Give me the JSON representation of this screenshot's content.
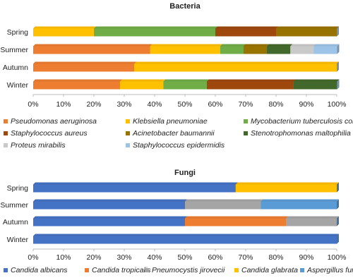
{
  "chart_data": [
    {
      "type": "bar",
      "orientation": "horizontal",
      "stacked": true,
      "title": "Bacteria",
      "categories": [
        "Spring",
        "Summer",
        "Autumn",
        "Winter"
      ],
      "xlim": [
        0,
        100
      ],
      "xticks": [
        {
          "value": 0,
          "label": "0%"
        },
        {
          "value": 10,
          "label": "10%"
        },
        {
          "value": 20,
          "label": "20%"
        },
        {
          "value": 30,
          "label": "30%"
        },
        {
          "value": 40,
          "label": "40%"
        },
        {
          "value": 50,
          "label": "50%"
        },
        {
          "value": 60,
          "label": "60%"
        },
        {
          "value": 70,
          "label": "70%"
        },
        {
          "value": 80,
          "label": "80%"
        },
        {
          "value": 90,
          "label": "90%"
        },
        {
          "value": 100,
          "label": "100%"
        }
      ],
      "series": [
        {
          "name": "Pseudomonas aeruginosa",
          "color": "#ed7d31",
          "values": [
            0,
            38.5,
            33.3,
            28.6
          ]
        },
        {
          "name": "Klebsiella pneumoniae",
          "color": "#ffc000",
          "values": [
            20,
            23.1,
            66.7,
            14.3
          ]
        },
        {
          "name": "Mycobacterium tuberculosis complex",
          "color": "#70ad47",
          "values": [
            40,
            7.7,
            0,
            14.3
          ]
        },
        {
          "name": "Staphylococcus aureus",
          "color": "#9e480e",
          "values": [
            20,
            0,
            0,
            28.6
          ]
        },
        {
          "name": "Acinetobacter baumannii",
          "color": "#997300",
          "values": [
            20,
            7.7,
            0,
            0
          ]
        },
        {
          "name": "Stenotrophomonas maltophilia",
          "color": "#43682b",
          "values": [
            0,
            7.7,
            0,
            14.3
          ]
        },
        {
          "name": "Proteus mirabilis",
          "color": "#c9c9c9",
          "values": [
            0,
            7.7,
            0,
            0
          ]
        },
        {
          "name": "Staphylococcus epidermidis",
          "color": "#9dc3e6",
          "values": [
            0,
            7.7,
            0,
            0
          ]
        }
      ]
    },
    {
      "type": "bar",
      "orientation": "horizontal",
      "stacked": true,
      "title": "Fungi",
      "categories": [
        "Spring",
        "Summer",
        "Autumn",
        "Winter"
      ],
      "xlim": [
        0,
        100
      ],
      "xticks": [
        {
          "value": 0,
          "label": "0%"
        },
        {
          "value": 10,
          "label": "10%"
        },
        {
          "value": 20,
          "label": "20%"
        },
        {
          "value": 30,
          "label": "30%"
        },
        {
          "value": 40,
          "label": "40%"
        },
        {
          "value": 50,
          "label": "50%"
        },
        {
          "value": 60,
          "label": "60%"
        },
        {
          "value": 70,
          "label": "70%"
        },
        {
          "value": 80,
          "label": "80%"
        },
        {
          "value": 90,
          "label": "90%"
        },
        {
          "value": 100,
          "label": "100%"
        }
      ],
      "series": [
        {
          "name": "Candida albicans",
          "color": "#4472c4",
          "values": [
            66.7,
            50,
            50,
            100
          ]
        },
        {
          "name": "Candida tropicalis",
          "color": "#ed7d31",
          "values": [
            0,
            0,
            33.3,
            0
          ]
        },
        {
          "name": "Pneumocystis jirovecii",
          "color": "#a5a5a5",
          "values": [
            0,
            25,
            16.7,
            0
          ]
        },
        {
          "name": "Candida glabrata",
          "color": "#ffc000",
          "values": [
            33.3,
            0,
            0,
            0
          ]
        },
        {
          "name": "Aspergillus fumigatus",
          "color": "#5b9bd5",
          "values": [
            0,
            25,
            0,
            0
          ]
        }
      ]
    }
  ]
}
